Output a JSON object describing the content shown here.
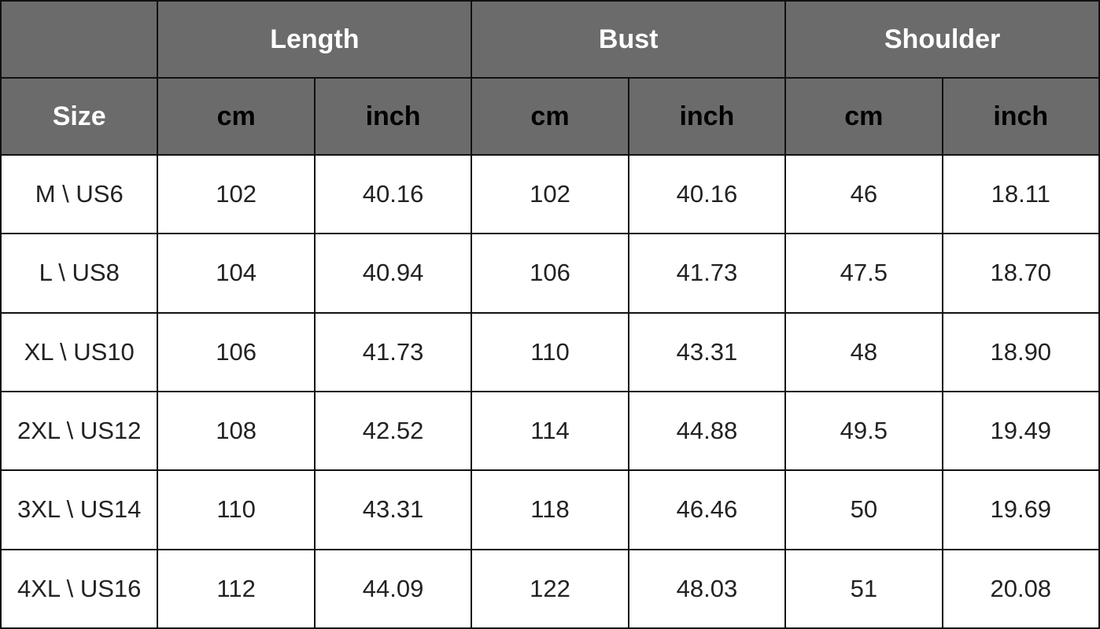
{
  "table": {
    "groups": [
      "Length",
      "Bust",
      "Shoulder"
    ],
    "size_label": "Size",
    "units": [
      "cm",
      "inch",
      "cm",
      "inch",
      "cm",
      "inch"
    ],
    "header_bg": "#6b6b6b",
    "rows": [
      [
        "M \\ US6",
        "102",
        "40.16",
        "102",
        "40.16",
        "46",
        "18.11"
      ],
      [
        "L \\ US8",
        "104",
        "40.94",
        "106",
        "41.73",
        "47.5",
        "18.70"
      ],
      [
        "XL \\ US10",
        "106",
        "41.73",
        "110",
        "43.31",
        "48",
        "18.90"
      ],
      [
        "2XL \\ US12",
        "108",
        "42.52",
        "114",
        "44.88",
        "49.5",
        "19.49"
      ],
      [
        "3XL \\ US14",
        "110",
        "43.31",
        "118",
        "46.46",
        "50",
        "19.69"
      ],
      [
        "4XL \\ US16",
        "112",
        "44.09",
        "122",
        "48.03",
        "51",
        "20.08"
      ]
    ]
  }
}
